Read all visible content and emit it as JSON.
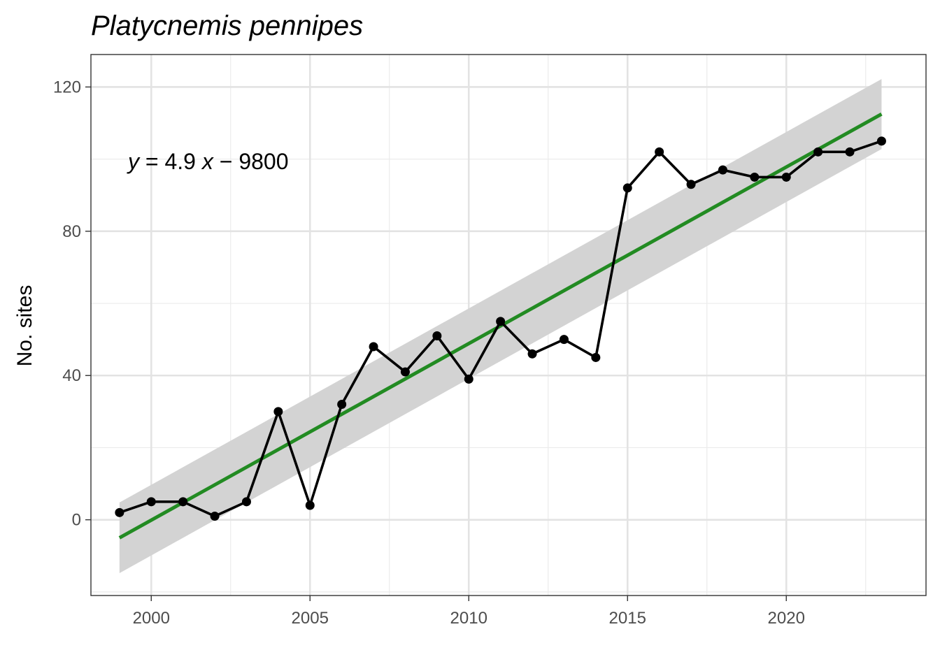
{
  "chart_data": {
    "type": "line",
    "title": "Platycnemis pennipes",
    "xlabel": "",
    "ylabel": "No. sites",
    "xlim": [
      1998.1,
      2024.4
    ],
    "ylim": [
      -21,
      129
    ],
    "x_ticks": [
      2000,
      2005,
      2010,
      2015,
      2020
    ],
    "x_tick_labels": [
      "2000",
      "2005",
      "2010",
      "2015",
      "2020"
    ],
    "y_ticks": [
      0,
      40,
      80,
      120
    ],
    "y_tick_labels": [
      "0",
      "40",
      "80",
      "120"
    ],
    "grid": true,
    "series": [
      {
        "x": [
          1999,
          2000,
          2001,
          2002,
          2003,
          2004,
          2005,
          2006,
          2007,
          2008,
          2009,
          2010,
          2011,
          2012,
          2013,
          2014,
          2015,
          2016,
          2017,
          2018,
          2019,
          2020,
          2021,
          2022,
          2023
        ],
        "values": [
          2,
          5,
          5,
          1,
          5,
          30,
          4,
          32,
          48,
          41,
          51,
          39,
          55,
          46,
          50,
          45,
          92,
          102,
          93,
          97,
          95,
          95,
          102,
          102,
          105
        ],
        "color": "#000000"
      }
    ],
    "trend": {
      "x": [
        1999,
        2023
      ],
      "y": [
        -5,
        112.5
      ],
      "ci_lower": [
        -14.8,
        102.8
      ],
      "ci_upper": [
        4.8,
        122.2
      ],
      "color": "#228B22",
      "band_color": "#d3d3d3"
    },
    "equation": {
      "lhs": "y",
      "mid": " = 4.9 ",
      "var": "x",
      "rhs": " − 9800"
    }
  }
}
